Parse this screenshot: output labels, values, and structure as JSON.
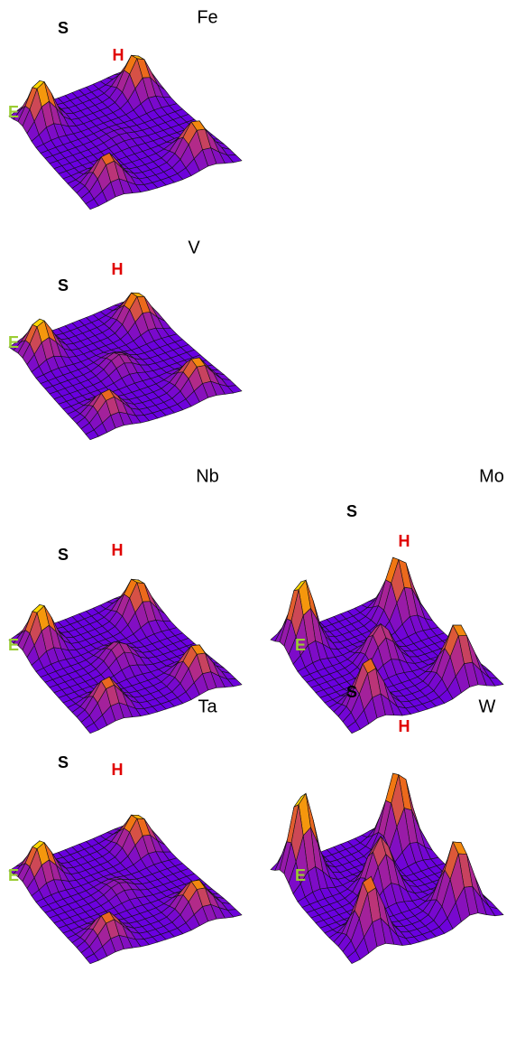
{
  "panels": [
    {
      "element": "Fe",
      "s": "S",
      "h": "H",
      "e": "E"
    },
    {
      "element": "V",
      "s": "S",
      "h": "H",
      "e": "E"
    },
    {
      "element": "Nb",
      "s": "S",
      "h": "H",
      "e": "E"
    },
    {
      "element": "Mo",
      "s": "S",
      "h": "H",
      "e": "E"
    },
    {
      "element": "Ta",
      "s": "S",
      "h": "H",
      "e": "E"
    },
    {
      "element": "W",
      "s": "S",
      "h": "H",
      "e": "E"
    }
  ]
}
